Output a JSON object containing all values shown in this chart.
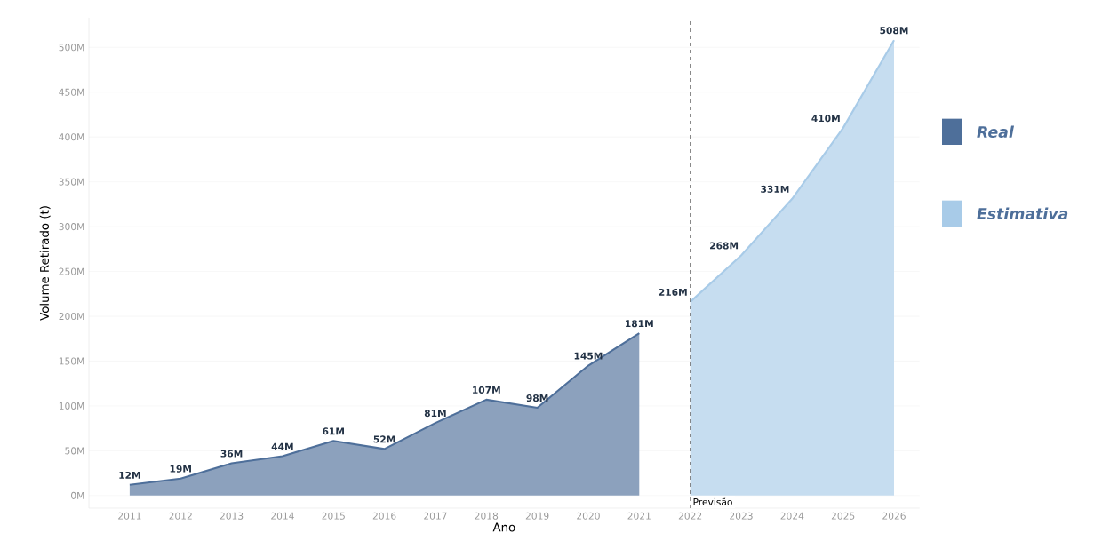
{
  "chart_data": {
    "type": "area",
    "xlabel": "Ano",
    "ylabel": "Volume Retirado (t)",
    "x": [
      2011,
      2012,
      2013,
      2014,
      2015,
      2016,
      2017,
      2018,
      2019,
      2020,
      2021,
      2022,
      2023,
      2024,
      2025,
      2026
    ],
    "series": [
      {
        "name": "Real",
        "color": "#4e6f9a",
        "values": [
          12,
          19,
          36,
          44,
          61,
          52,
          81,
          107,
          98,
          145,
          181,
          null,
          null,
          null,
          null,
          null
        ],
        "value_labels": [
          "12M",
          "19M",
          "36M",
          "44M",
          "61M",
          "52M",
          "81M",
          "107M",
          "98M",
          "145M",
          "181M",
          null,
          null,
          null,
          null,
          null
        ]
      },
      {
        "name": "Estimativa",
        "color": "#a8cbe8",
        "values": [
          null,
          null,
          null,
          null,
          null,
          null,
          null,
          null,
          null,
          null,
          null,
          216,
          268,
          331,
          410,
          508
        ],
        "value_labels": [
          null,
          null,
          null,
          null,
          null,
          null,
          null,
          null,
          null,
          null,
          null,
          "216M",
          "268M",
          "331M",
          "410M",
          "508M"
        ]
      }
    ],
    "xlim": [
      2010.2,
      2026.5
    ],
    "xticks": [
      2011,
      2012,
      2013,
      2014,
      2015,
      2016,
      2017,
      2018,
      2019,
      2020,
      2021,
      2022,
      2023,
      2024,
      2025,
      2026
    ],
    "ylim": [
      -14,
      533
    ],
    "yticks": [
      {
        "value": 0,
        "label": "0M"
      },
      {
        "value": 50,
        "label": "50M"
      },
      {
        "value": 100,
        "label": "100M"
      },
      {
        "value": 150,
        "label": "150M"
      },
      {
        "value": 200,
        "label": "200M"
      },
      {
        "value": 250,
        "label": "250M"
      },
      {
        "value": 300,
        "label": "300M"
      },
      {
        "value": 350,
        "label": "350M"
      },
      {
        "value": 400,
        "label": "400M"
      },
      {
        "value": 450,
        "label": "450M"
      },
      {
        "value": 500,
        "label": "500M"
      }
    ],
    "ref_lines": [
      {
        "axis": "x",
        "value": 2022,
        "label": "Previsão",
        "color": "#555555",
        "line_style": "dashed"
      }
    ],
    "grid": "y",
    "legend": "right"
  }
}
